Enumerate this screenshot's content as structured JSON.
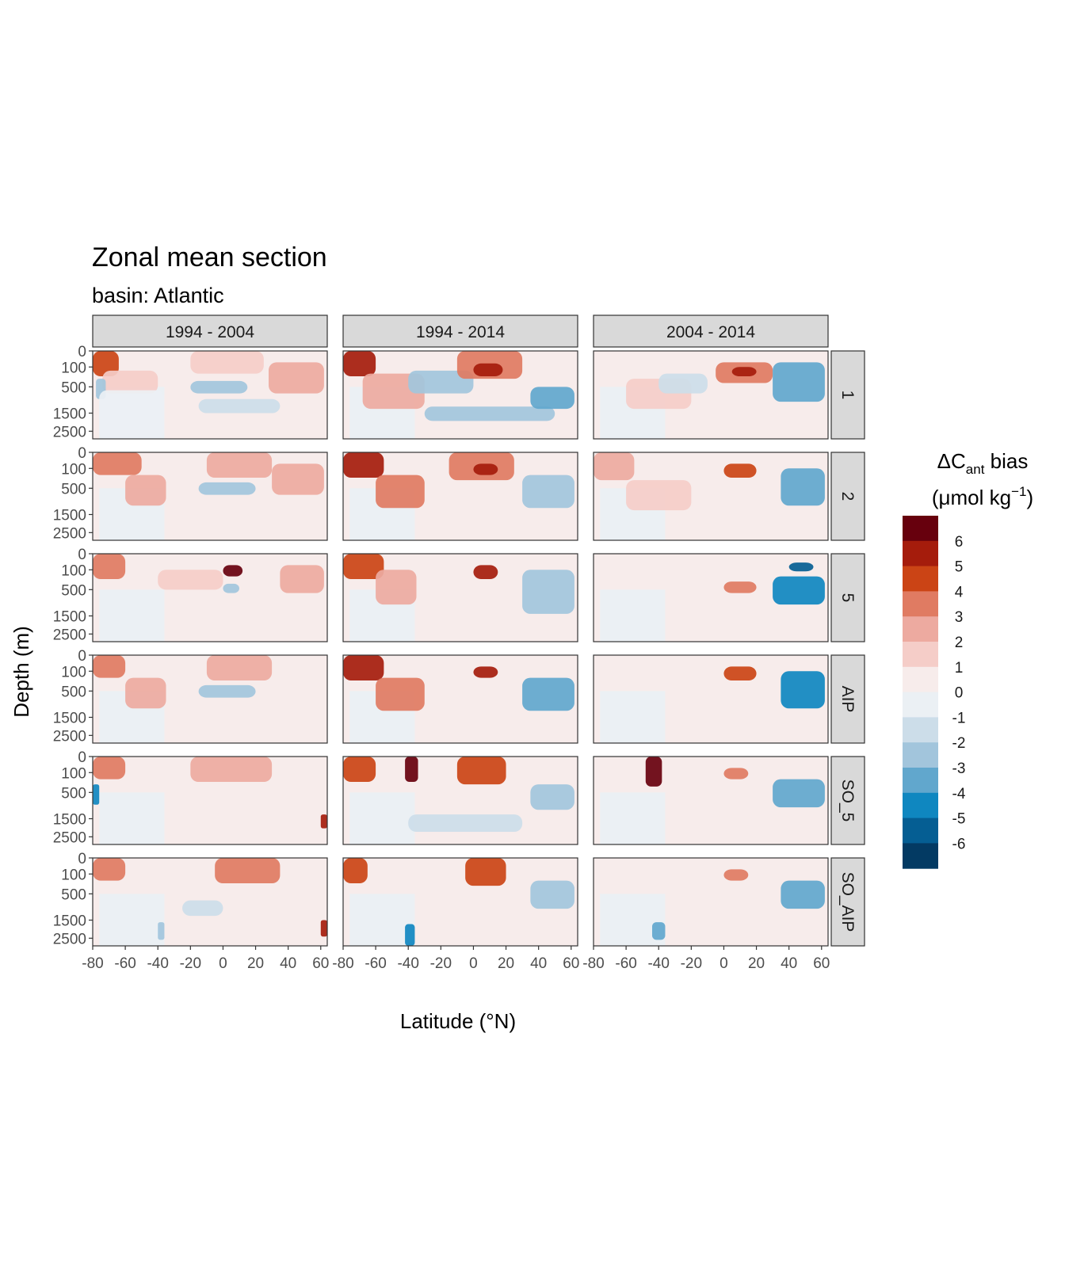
{
  "chart_data": {
    "type": "heatmap",
    "title": "Zonal mean section",
    "subtitle": "basin: Atlantic",
    "xlabel": "Latitude (°N)",
    "ylabel": "Depth (m)",
    "x_ticks": [
      "-80",
      "-60",
      "-40",
      "-20",
      "0",
      "20",
      "40",
      "60"
    ],
    "x_tick_values": [
      -80,
      -60,
      -40,
      -20,
      0,
      20,
      40,
      60
    ],
    "xlim": [
      -80,
      64
    ],
    "y_ticks": [
      "0",
      "100",
      "500",
      "1500",
      "2500"
    ],
    "y_tick_values": [
      0,
      100,
      500,
      1500,
      2500
    ],
    "ylim": [
      3000,
      0
    ],
    "y_scale": "sqrt",
    "columns": [
      "1994 - 2004",
      "1994 - 2014",
      "2004 - 2014"
    ],
    "rows": [
      "1",
      "2",
      "5",
      "AIP",
      "SO_5",
      "SO_AIP"
    ],
    "legend": {
      "title_main": "ΔC",
      "title_sub": "ant",
      "title_rest": " bias",
      "unit_open": "(μmol kg",
      "unit_sup": "−1",
      "unit_close": ")",
      "labels": [
        "6",
        "5",
        "4",
        "3",
        "2",
        "1",
        "0",
        "-1",
        "-2",
        "-3",
        "-4",
        "-5",
        "-6"
      ],
      "bins": [
        7,
        6,
        5,
        4,
        3,
        2,
        1,
        0,
        -1,
        -2,
        -3,
        -4,
        -5,
        -6
      ],
      "colors": [
        "#67000d",
        "#a51c0c",
        "#cb4415",
        "#e07b62",
        "#edaaa0",
        "#f5cdc8",
        "#f7eceb",
        "#ebf0f4",
        "#ccdde9",
        "#a2c5dc",
        "#61a7cd",
        "#0f87c0",
        "#055e93",
        "#033a63"
      ],
      "placement": "right"
    },
    "background_color": "#f7eceb",
    "strip_color": "#d9d9d9",
    "features": [
      {
        "panel": [
          0,
          0
        ],
        "lat": [
          -80,
          -64
        ],
        "depth": [
          0,
          250
        ],
        "value": 4.5
      },
      {
        "panel": [
          0,
          0
        ],
        "lat": [
          -74,
          -40
        ],
        "depth": [
          150,
          700
        ],
        "value": 2
      },
      {
        "panel": [
          0,
          0
        ],
        "lat": [
          -78,
          -72
        ],
        "depth": [
          300,
          900
        ],
        "value": -2
      },
      {
        "panel": [
          0,
          0
        ],
        "lat": [
          -76,
          -36
        ],
        "depth": [
          600,
          3000
        ],
        "value": -0.5
      },
      {
        "panel": [
          0,
          0
        ],
        "lat": [
          -20,
          25
        ],
        "depth": [
          0,
          200
        ],
        "value": 2
      },
      {
        "panel": [
          0,
          0
        ],
        "lat": [
          -20,
          15
        ],
        "depth": [
          350,
          700
        ],
        "value": -2.5
      },
      {
        "panel": [
          0,
          0
        ],
        "lat": [
          -15,
          35
        ],
        "depth": [
          900,
          1500
        ],
        "value": -1
      },
      {
        "panel": [
          0,
          0
        ],
        "lat": [
          28,
          62
        ],
        "depth": [
          50,
          700
        ],
        "value": 3
      },
      {
        "panel": [
          0,
          1
        ],
        "lat": [
          -80,
          -60
        ],
        "depth": [
          0,
          250
        ],
        "value": 5.5
      },
      {
        "panel": [
          0,
          1
        ],
        "lat": [
          -68,
          -30
        ],
        "depth": [
          200,
          1300
        ],
        "value": 3
      },
      {
        "panel": [
          0,
          1
        ],
        "lat": [
          -40,
          0
        ],
        "depth": [
          150,
          700
        ],
        "value": -2.5
      },
      {
        "panel": [
          0,
          1
        ],
        "lat": [
          -10,
          30
        ],
        "depth": [
          0,
          300
        ],
        "value": 4
      },
      {
        "panel": [
          0,
          1
        ],
        "lat": [
          0,
          18
        ],
        "depth": [
          60,
          250
        ],
        "value": 6
      },
      {
        "panel": [
          0,
          1
        ],
        "lat": [
          -30,
          50
        ],
        "depth": [
          1200,
          1900
        ],
        "value": -2
      },
      {
        "panel": [
          0,
          1
        ],
        "lat": [
          35,
          62
        ],
        "depth": [
          500,
          1300
        ],
        "value": -3
      },
      {
        "panel": [
          0,
          2
        ],
        "lat": [
          -60,
          -20
        ],
        "depth": [
          300,
          1300
        ],
        "value": 2
      },
      {
        "panel": [
          0,
          2
        ],
        "lat": [
          -40,
          -10
        ],
        "depth": [
          200,
          700
        ],
        "value": -1.5
      },
      {
        "panel": [
          0,
          2
        ],
        "lat": [
          -5,
          30
        ],
        "depth": [
          50,
          400
        ],
        "value": 3.5
      },
      {
        "panel": [
          0,
          2
        ],
        "lat": [
          5,
          20
        ],
        "depth": [
          100,
          250
        ],
        "value": 5.5
      },
      {
        "panel": [
          0,
          2
        ],
        "lat": [
          30,
          62
        ],
        "depth": [
          50,
          1000
        ],
        "value": -3
      },
      {
        "panel": [
          1,
          0
        ],
        "lat": [
          -80,
          -50
        ],
        "depth": [
          0,
          200
        ],
        "value": 3.5
      },
      {
        "panel": [
          1,
          0
        ],
        "lat": [
          -60,
          -35
        ],
        "depth": [
          200,
          1100
        ],
        "value": 2.5
      },
      {
        "panel": [
          1,
          0
        ],
        "lat": [
          -10,
          30
        ],
        "depth": [
          0,
          250
        ],
        "value": 3
      },
      {
        "panel": [
          1,
          0
        ],
        "lat": [
          -15,
          20
        ],
        "depth": [
          350,
          700
        ],
        "value": -2
      },
      {
        "panel": [
          1,
          0
        ],
        "lat": [
          30,
          62
        ],
        "depth": [
          50,
          700
        ],
        "value": 2.5
      },
      {
        "panel": [
          1,
          1
        ],
        "lat": [
          -80,
          -55
        ],
        "depth": [
          0,
          250
        ],
        "value": 5.5
      },
      {
        "panel": [
          1,
          1
        ],
        "lat": [
          -60,
          -30
        ],
        "depth": [
          200,
          1200
        ],
        "value": 3.5
      },
      {
        "panel": [
          1,
          1
        ],
        "lat": [
          -15,
          25
        ],
        "depth": [
          0,
          300
        ],
        "value": 4
      },
      {
        "panel": [
          1,
          1
        ],
        "lat": [
          0,
          15
        ],
        "depth": [
          50,
          200
        ],
        "value": 5.5
      },
      {
        "panel": [
          1,
          1
        ],
        "lat": [
          30,
          62
        ],
        "depth": [
          200,
          1200
        ],
        "value": -2.5
      },
      {
        "panel": [
          1,
          2
        ],
        "lat": [
          -80,
          -55
        ],
        "depth": [
          0,
          300
        ],
        "value": 3
      },
      {
        "panel": [
          1,
          2
        ],
        "lat": [
          -60,
          -20
        ],
        "depth": [
          300,
          1300
        ],
        "value": 2
      },
      {
        "panel": [
          1,
          2
        ],
        "lat": [
          0,
          20
        ],
        "depth": [
          50,
          250
        ],
        "value": 4.5
      },
      {
        "panel": [
          1,
          2
        ],
        "lat": [
          35,
          62
        ],
        "depth": [
          100,
          1100
        ],
        "value": -3.5
      },
      {
        "panel": [
          2,
          0
        ],
        "lat": [
          -80,
          -60
        ],
        "depth": [
          0,
          250
        ],
        "value": 4
      },
      {
        "panel": [
          2,
          0
        ],
        "lat": [
          -40,
          0
        ],
        "depth": [
          100,
          500
        ],
        "value": 2
      },
      {
        "panel": [
          2,
          0
        ],
        "lat": [
          0,
          12
        ],
        "depth": [
          50,
          200
        ],
        "value": 6.5
      },
      {
        "panel": [
          2,
          0
        ],
        "lat": [
          0,
          10
        ],
        "depth": [
          350,
          600
        ],
        "value": -2
      },
      {
        "panel": [
          2,
          0
        ],
        "lat": [
          35,
          62
        ],
        "depth": [
          50,
          600
        ],
        "value": 2.5
      },
      {
        "panel": [
          2,
          1
        ],
        "lat": [
          -80,
          -55
        ],
        "depth": [
          0,
          250
        ],
        "value": 5
      },
      {
        "panel": [
          2,
          1
        ],
        "lat": [
          -60,
          -35
        ],
        "depth": [
          100,
          1000
        ],
        "value": 2.5
      },
      {
        "panel": [
          2,
          1
        ],
        "lat": [
          0,
          15
        ],
        "depth": [
          50,
          250
        ],
        "value": 5.5
      },
      {
        "panel": [
          2,
          1
        ],
        "lat": [
          30,
          62
        ],
        "depth": [
          100,
          1400
        ],
        "value": -2
      },
      {
        "panel": [
          2,
          2
        ],
        "lat": [
          0,
          20
        ],
        "depth": [
          300,
          600
        ],
        "value": 3.5
      },
      {
        "panel": [
          2,
          2
        ],
        "lat": [
          40,
          55
        ],
        "depth": [
          30,
          120
        ],
        "value": -5.5
      },
      {
        "panel": [
          2,
          2
        ],
        "lat": [
          30,
          62
        ],
        "depth": [
          200,
          1000
        ],
        "value": -4
      },
      {
        "panel": [
          3,
          0
        ],
        "lat": [
          -80,
          -60
        ],
        "depth": [
          0,
          200
        ],
        "value": 3.5
      },
      {
        "panel": [
          3,
          0
        ],
        "lat": [
          -60,
          -35
        ],
        "depth": [
          200,
          1100
        ],
        "value": 2.5
      },
      {
        "panel": [
          3,
          0
        ],
        "lat": [
          -10,
          30
        ],
        "depth": [
          0,
          250
        ],
        "value": 3
      },
      {
        "panel": [
          3,
          0
        ],
        "lat": [
          -15,
          20
        ],
        "depth": [
          350,
          700
        ],
        "value": -2
      },
      {
        "panel": [
          3,
          1
        ],
        "lat": [
          -80,
          -55
        ],
        "depth": [
          0,
          250
        ],
        "value": 5.5
      },
      {
        "panel": [
          3,
          1
        ],
        "lat": [
          -60,
          -30
        ],
        "depth": [
          200,
          1200
        ],
        "value": 3.5
      },
      {
        "panel": [
          3,
          1
        ],
        "lat": [
          0,
          15
        ],
        "depth": [
          50,
          200
        ],
        "value": 5.5
      },
      {
        "panel": [
          3,
          1
        ],
        "lat": [
          30,
          62
        ],
        "depth": [
          200,
          1200
        ],
        "value": -3
      },
      {
        "panel": [
          3,
          2
        ],
        "lat": [
          0,
          20
        ],
        "depth": [
          50,
          250
        ],
        "value": 4.5
      },
      {
        "panel": [
          3,
          2
        ],
        "lat": [
          35,
          62
        ],
        "depth": [
          100,
          1100
        ],
        "value": -4
      },
      {
        "panel": [
          4,
          0
        ],
        "lat": [
          -80,
          -60
        ],
        "depth": [
          0,
          200
        ],
        "value": 3.5
      },
      {
        "panel": [
          4,
          0
        ],
        "lat": [
          -20,
          30
        ],
        "depth": [
          0,
          250
        ],
        "value": 3
      },
      {
        "panel": [
          4,
          0
        ],
        "lat": [
          -80,
          -76
        ],
        "depth": [
          300,
          900
        ],
        "value": -4
      },
      {
        "panel": [
          4,
          0
        ],
        "lat": [
          60,
          64
        ],
        "depth": [
          1300,
          2000
        ],
        "value": 6
      },
      {
        "panel": [
          4,
          1
        ],
        "lat": [
          -80,
          -60
        ],
        "depth": [
          0,
          250
        ],
        "value": 5
      },
      {
        "panel": [
          4,
          1
        ],
        "lat": [
          -42,
          -34
        ],
        "depth": [
          0,
          250
        ],
        "value": 7
      },
      {
        "panel": [
          4,
          1
        ],
        "lat": [
          -10,
          20
        ],
        "depth": [
          0,
          300
        ],
        "value": 4.5
      },
      {
        "panel": [
          4,
          1
        ],
        "lat": [
          -40,
          30
        ],
        "depth": [
          1300,
          2200
        ],
        "value": -1.5
      },
      {
        "panel": [
          4,
          1
        ],
        "lat": [
          35,
          62
        ],
        "depth": [
          300,
          1100
        ],
        "value": -2
      },
      {
        "panel": [
          4,
          2
        ],
        "lat": [
          -48,
          -38
        ],
        "depth": [
          0,
          350
        ],
        "value": 7
      },
      {
        "panel": [
          4,
          2
        ],
        "lat": [
          0,
          15
        ],
        "depth": [
          50,
          200
        ],
        "value": 4
      },
      {
        "panel": [
          4,
          2
        ],
        "lat": [
          30,
          62
        ],
        "depth": [
          200,
          1000
        ],
        "value": -3
      },
      {
        "panel": [
          5,
          0
        ],
        "lat": [
          -80,
          -60
        ],
        "depth": [
          0,
          200
        ],
        "value": 3.5
      },
      {
        "panel": [
          5,
          0
        ],
        "lat": [
          -5,
          35
        ],
        "depth": [
          0,
          250
        ],
        "value": 3.5
      },
      {
        "panel": [
          5,
          0
        ],
        "lat": [
          -40,
          -36
        ],
        "depth": [
          1600,
          2600
        ],
        "value": -2
      },
      {
        "panel": [
          5,
          0
        ],
        "lat": [
          -25,
          0
        ],
        "depth": [
          700,
          1300
        ],
        "value": -1.5
      },
      {
        "panel": [
          5,
          0
        ],
        "lat": [
          60,
          64
        ],
        "depth": [
          1500,
          2400
        ],
        "value": 6
      },
      {
        "panel": [
          5,
          1
        ],
        "lat": [
          -80,
          -65
        ],
        "depth": [
          0,
          250
        ],
        "value": 5
      },
      {
        "panel": [
          5,
          1
        ],
        "lat": [
          -42,
          -36
        ],
        "depth": [
          1700,
          3000
        ],
        "value": -4
      },
      {
        "panel": [
          5,
          1
        ],
        "lat": [
          -5,
          20
        ],
        "depth": [
          0,
          300
        ],
        "value": 5
      },
      {
        "panel": [
          5,
          1
        ],
        "lat": [
          35,
          62
        ],
        "depth": [
          200,
          1000
        ],
        "value": -2
      },
      {
        "panel": [
          5,
          2
        ],
        "lat": [
          -44,
          -36
        ],
        "depth": [
          1600,
          2600
        ],
        "value": -3
      },
      {
        "panel": [
          5,
          2
        ],
        "lat": [
          0,
          15
        ],
        "depth": [
          50,
          200
        ],
        "value": 4
      },
      {
        "panel": [
          5,
          2
        ],
        "lat": [
          35,
          62
        ],
        "depth": [
          200,
          1000
        ],
        "value": -3.5
      }
    ]
  }
}
